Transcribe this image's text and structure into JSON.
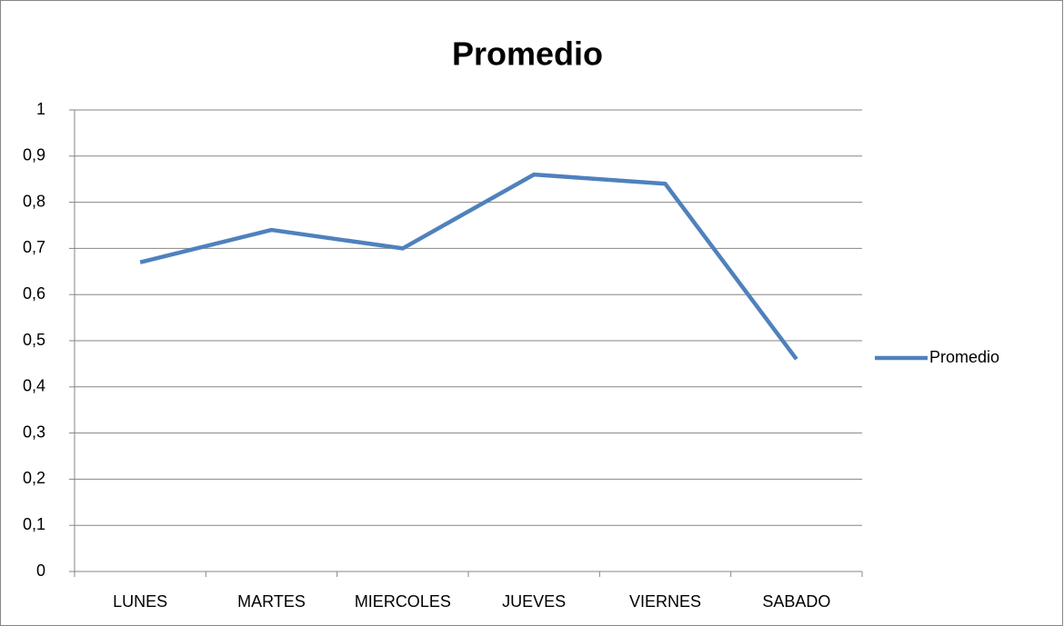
{
  "chart_data": {
    "type": "line",
    "title": "Promedio",
    "categories": [
      "LUNES",
      "MARTES",
      "MIERCOLES",
      "JUEVES",
      "VIERNES",
      "SABADO"
    ],
    "series": [
      {
        "name": "Promedio",
        "color": "#4f81bd",
        "values": [
          0.67,
          0.74,
          0.7,
          0.86,
          0.84,
          0.46
        ]
      }
    ],
    "ylim": [
      0,
      1
    ],
    "yticks": [
      0,
      {
        "value": 0.1,
        "label": "0,1"
      },
      {
        "value": 0.2,
        "label": "0,2"
      },
      {
        "value": 0.3,
        "label": "0,3"
      },
      {
        "value": 0.4,
        "label": "0,4"
      },
      {
        "value": 0.5,
        "label": "0,5"
      },
      {
        "value": 0.6,
        "label": "0,6"
      },
      {
        "value": 0.7,
        "label": "0,7"
      },
      {
        "value": 0.8,
        "label": "0,8"
      },
      {
        "value": 0.9,
        "label": "0,9"
      },
      1
    ],
    "grid": true,
    "legend": "right"
  }
}
